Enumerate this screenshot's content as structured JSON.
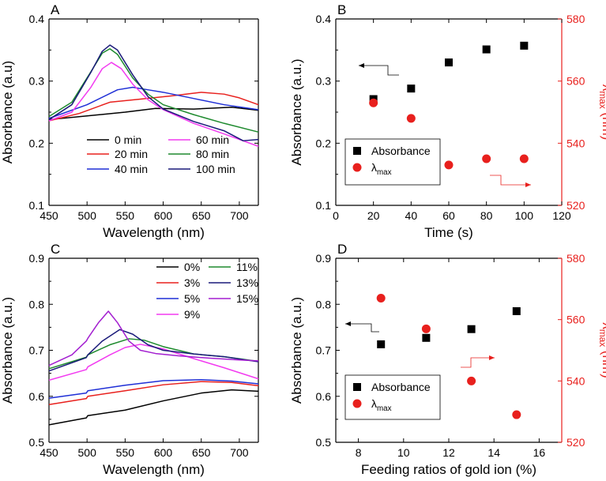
{
  "colors": {
    "black": "#000000",
    "red": "#e8201d",
    "blue": "#1f2fd6",
    "green": "#1e8a2e",
    "magenta": "#f23af0",
    "navy": "#1a1a7a",
    "purple": "#a31fd0"
  },
  "chart_data": [
    {
      "panel": "A",
      "type": "line",
      "xlabel": "Wavelength (nm)",
      "ylabel": "Absorbance (a.u)",
      "xlim": [
        450,
        725
      ],
      "ylim": [
        0.1,
        0.4
      ],
      "xticks": [
        450,
        500,
        550,
        600,
        650,
        700
      ],
      "yticks": [
        0.1,
        0.2,
        0.3,
        0.4
      ],
      "xtick_labels": [
        "450",
        "500",
        "550",
        "600",
        "650",
        "700"
      ],
      "ytick_labels": [
        "0.1",
        "0.2",
        "0.3",
        "0.4"
      ],
      "legend": [
        "0 min",
        "20 min",
        "40 min",
        "60 min",
        "80 min",
        "100 min"
      ],
      "series": [
        {
          "name": "0 min",
          "color": "#000000",
          "x": [
            450,
            500,
            550,
            590,
            640,
            690,
            725
          ],
          "y": [
            0.238,
            0.244,
            0.25,
            0.256,
            0.255,
            0.258,
            0.253
          ]
        },
        {
          "name": "20 min",
          "color": "#e8201d",
          "x": [
            450,
            490,
            530,
            570,
            610,
            650,
            680,
            700,
            725
          ],
          "y": [
            0.236,
            0.248,
            0.266,
            0.271,
            0.276,
            0.282,
            0.279,
            0.273,
            0.262
          ]
        },
        {
          "name": "40 min",
          "color": "#1f2fd6",
          "x": [
            450,
            500,
            540,
            560,
            580,
            600,
            640,
            680,
            725
          ],
          "y": [
            0.24,
            0.262,
            0.286,
            0.29,
            0.286,
            0.282,
            0.272,
            0.262,
            0.254
          ]
        },
        {
          "name": "60 min",
          "color": "#f23af0",
          "x": [
            450,
            480,
            505,
            520,
            532,
            545,
            560,
            580,
            600,
            640,
            680,
            725
          ],
          "y": [
            0.236,
            0.25,
            0.29,
            0.32,
            0.33,
            0.32,
            0.295,
            0.27,
            0.254,
            0.232,
            0.215,
            0.195
          ]
        },
        {
          "name": "80 min",
          "color": "#1e8a2e",
          "x": [
            450,
            480,
            505,
            520,
            530,
            540,
            560,
            580,
            600,
            640,
            680,
            725
          ],
          "y": [
            0.243,
            0.266,
            0.315,
            0.345,
            0.352,
            0.343,
            0.305,
            0.279,
            0.262,
            0.246,
            0.232,
            0.218
          ]
        },
        {
          "name": "100 min",
          "color": "#1a1a7a",
          "x": [
            450,
            480,
            505,
            520,
            530,
            540,
            560,
            580,
            600,
            640,
            680,
            705,
            725
          ],
          "y": [
            0.238,
            0.262,
            0.314,
            0.348,
            0.358,
            0.35,
            0.31,
            0.275,
            0.255,
            0.235,
            0.22,
            0.204,
            0.206
          ]
        }
      ]
    },
    {
      "panel": "B",
      "type": "scatter",
      "xlabel": "Time (s)",
      "ylabel": "Absorbance (a.u.)",
      "y2label": "λmax (nm)",
      "xlim": [
        0,
        120
      ],
      "ylim": [
        0.1,
        0.4
      ],
      "y2lim": [
        520,
        580
      ],
      "xticks": [
        0,
        20,
        40,
        60,
        80,
        100,
        120
      ],
      "yticks": [
        0.1,
        0.2,
        0.3,
        0.4
      ],
      "y2ticks": [
        520,
        540,
        560,
        580
      ],
      "xtick_labels": [
        "0",
        "20",
        "40",
        "60",
        "80",
        "100",
        "120"
      ],
      "ytick_labels": [
        "0.1",
        "0.2",
        "0.3",
        "0.4"
      ],
      "y2tick_labels": [
        "520",
        "540",
        "560",
        "580"
      ],
      "legend": [
        "Absorbance",
        "λmax"
      ],
      "absorbance": {
        "x": [
          20,
          40,
          60,
          80,
          100
        ],
        "y": [
          0.271,
          0.288,
          0.33,
          0.351,
          0.357
        ]
      },
      "lambda_max": {
        "x": [
          20,
          40,
          60,
          80,
          100
        ],
        "y": [
          553,
          548,
          533,
          535,
          535
        ]
      }
    },
    {
      "panel": "C",
      "type": "line",
      "xlabel": "Wavelength (nm)",
      "ylabel": "Absorbance (a.u.)",
      "xlim": [
        450,
        725
      ],
      "ylim": [
        0.5,
        0.9
      ],
      "xticks": [
        450,
        500,
        550,
        600,
        650,
        700
      ],
      "yticks": [
        0.5,
        0.6,
        0.7,
        0.8,
        0.9
      ],
      "xtick_labels": [
        "450",
        "500",
        "550",
        "600",
        "650",
        "700"
      ],
      "ytick_labels": [
        "0.5",
        "0.6",
        "0.7",
        "0.8",
        "0.9"
      ],
      "legend": [
        "0%",
        "3%",
        "5%",
        "9%",
        "11%",
        "13%",
        "15%"
      ],
      "series": [
        {
          "name": "0%",
          "color": "#000000",
          "x": [
            450,
            499,
            501,
            550,
            600,
            650,
            690,
            725
          ],
          "y": [
            0.538,
            0.553,
            0.558,
            0.57,
            0.59,
            0.607,
            0.614,
            0.611
          ]
        },
        {
          "name": "3%",
          "color": "#e8201d",
          "x": [
            450,
            499,
            501,
            550,
            600,
            650,
            690,
            725
          ],
          "y": [
            0.582,
            0.595,
            0.6,
            0.612,
            0.625,
            0.632,
            0.63,
            0.623
          ]
        },
        {
          "name": "5%",
          "color": "#1f2fd6",
          "x": [
            450,
            499,
            501,
            550,
            600,
            650,
            690,
            725
          ],
          "y": [
            0.596,
            0.607,
            0.612,
            0.624,
            0.634,
            0.636,
            0.633,
            0.627
          ]
        },
        {
          "name": "9%",
          "color": "#f23af0",
          "x": [
            450,
            499,
            501,
            530,
            550,
            570,
            600,
            640,
            680,
            725
          ],
          "y": [
            0.635,
            0.658,
            0.664,
            0.69,
            0.706,
            0.713,
            0.703,
            0.682,
            0.662,
            0.638
          ]
        },
        {
          "name": "11%",
          "color": "#1e8a2e",
          "x": [
            450,
            499,
            501,
            530,
            555,
            575,
            600,
            640,
            680,
            725
          ],
          "y": [
            0.66,
            0.685,
            0.69,
            0.712,
            0.725,
            0.722,
            0.708,
            0.692,
            0.686,
            0.676
          ]
        },
        {
          "name": "13%",
          "color": "#1a1a7a",
          "x": [
            450,
            499,
            501,
            520,
            543,
            560,
            580,
            600,
            640,
            680,
            725
          ],
          "y": [
            0.655,
            0.684,
            0.69,
            0.72,
            0.745,
            0.735,
            0.712,
            0.7,
            0.692,
            0.686,
            0.675
          ]
        },
        {
          "name": "15%",
          "color": "#a31fd0",
          "x": [
            450,
            480,
            499,
            501,
            515,
            528,
            540,
            555,
            570,
            590,
            620,
            660,
            700,
            725
          ],
          "y": [
            0.667,
            0.69,
            0.72,
            0.726,
            0.76,
            0.785,
            0.76,
            0.72,
            0.7,
            0.693,
            0.688,
            0.683,
            0.679,
            0.677
          ]
        }
      ]
    },
    {
      "panel": "D",
      "type": "scatter",
      "xlabel": "Feeding ratios of gold ion (%)",
      "ylabel": "Absorbance (a.u.)",
      "y2label": "λmax (nm)",
      "xlim": [
        7,
        17
      ],
      "ylim": [
        0.5,
        0.9
      ],
      "y2lim": [
        520,
        580
      ],
      "xticks": [
        8,
        10,
        12,
        14,
        16
      ],
      "yticks": [
        0.5,
        0.6,
        0.7,
        0.8,
        0.9
      ],
      "y2ticks": [
        520,
        540,
        560,
        580
      ],
      "xtick_labels": [
        "8",
        "10",
        "12",
        "14",
        "16"
      ],
      "ytick_labels": [
        "0.5",
        "0.6",
        "0.7",
        "0.8",
        "0.9"
      ],
      "y2tick_labels": [
        "520",
        "540",
        "560",
        "580"
      ],
      "legend": [
        "Absorbance",
        "λmax"
      ],
      "absorbance": {
        "x": [
          9,
          11,
          13,
          15
        ],
        "y": [
          0.713,
          0.727,
          0.746,
          0.785
        ]
      },
      "lambda_max": {
        "x": [
          9,
          11,
          13,
          15
        ],
        "y": [
          567,
          557,
          540,
          529
        ]
      }
    }
  ]
}
